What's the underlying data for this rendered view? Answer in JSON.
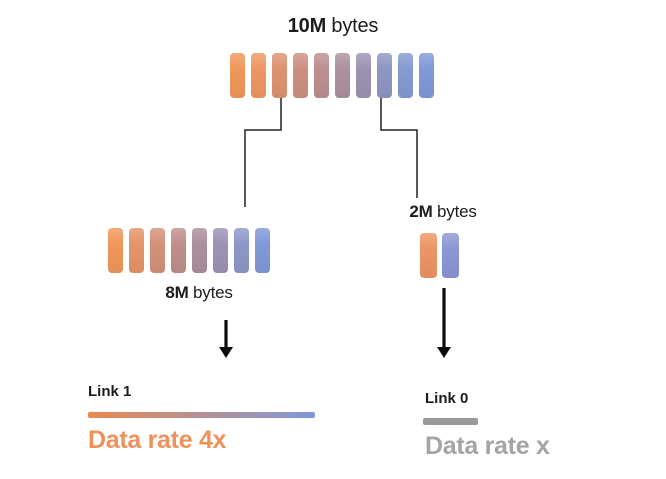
{
  "canvas": {
    "background": "#ffffff"
  },
  "source": {
    "label_bold": "10M",
    "label_rest": " bytes",
    "block_count": 10,
    "bar_colors": [
      "#F0975A",
      "#ED9763",
      "#DD9370",
      "#CD9080",
      "#BD8F90",
      "#AC90A0",
      "#9C93B2",
      "#8E97C3",
      "#859AD1",
      "#8099D8"
    ]
  },
  "left_branch": {
    "label_bold": "8M",
    "label_rest": " bytes",
    "block_count": 8,
    "bar_colors": [
      "#F0975A",
      "#E59468",
      "#D39179",
      "#C08E8C",
      "#AE8F9E",
      "#9D93B5",
      "#8D98C8",
      "#8099D8"
    ],
    "link_label": "Link 1",
    "rate_label": "Data rate 4x",
    "rate_color": "#F0915C",
    "line_from": "#E9894F",
    "line_to": "#7F99DA"
  },
  "right_branch": {
    "label_bold": "2M",
    "label_rest": " bytes",
    "block_count": 2,
    "bar_colors": [
      "#EC9464",
      "#8B96D4"
    ],
    "link_label": "Link 0",
    "rate_label": "Data rate x",
    "rate_color": "#A4A4A4",
    "line_color": "#9A9A9A"
  },
  "connector_color": "#222222",
  "arrow_color": "#0b0b0b"
}
